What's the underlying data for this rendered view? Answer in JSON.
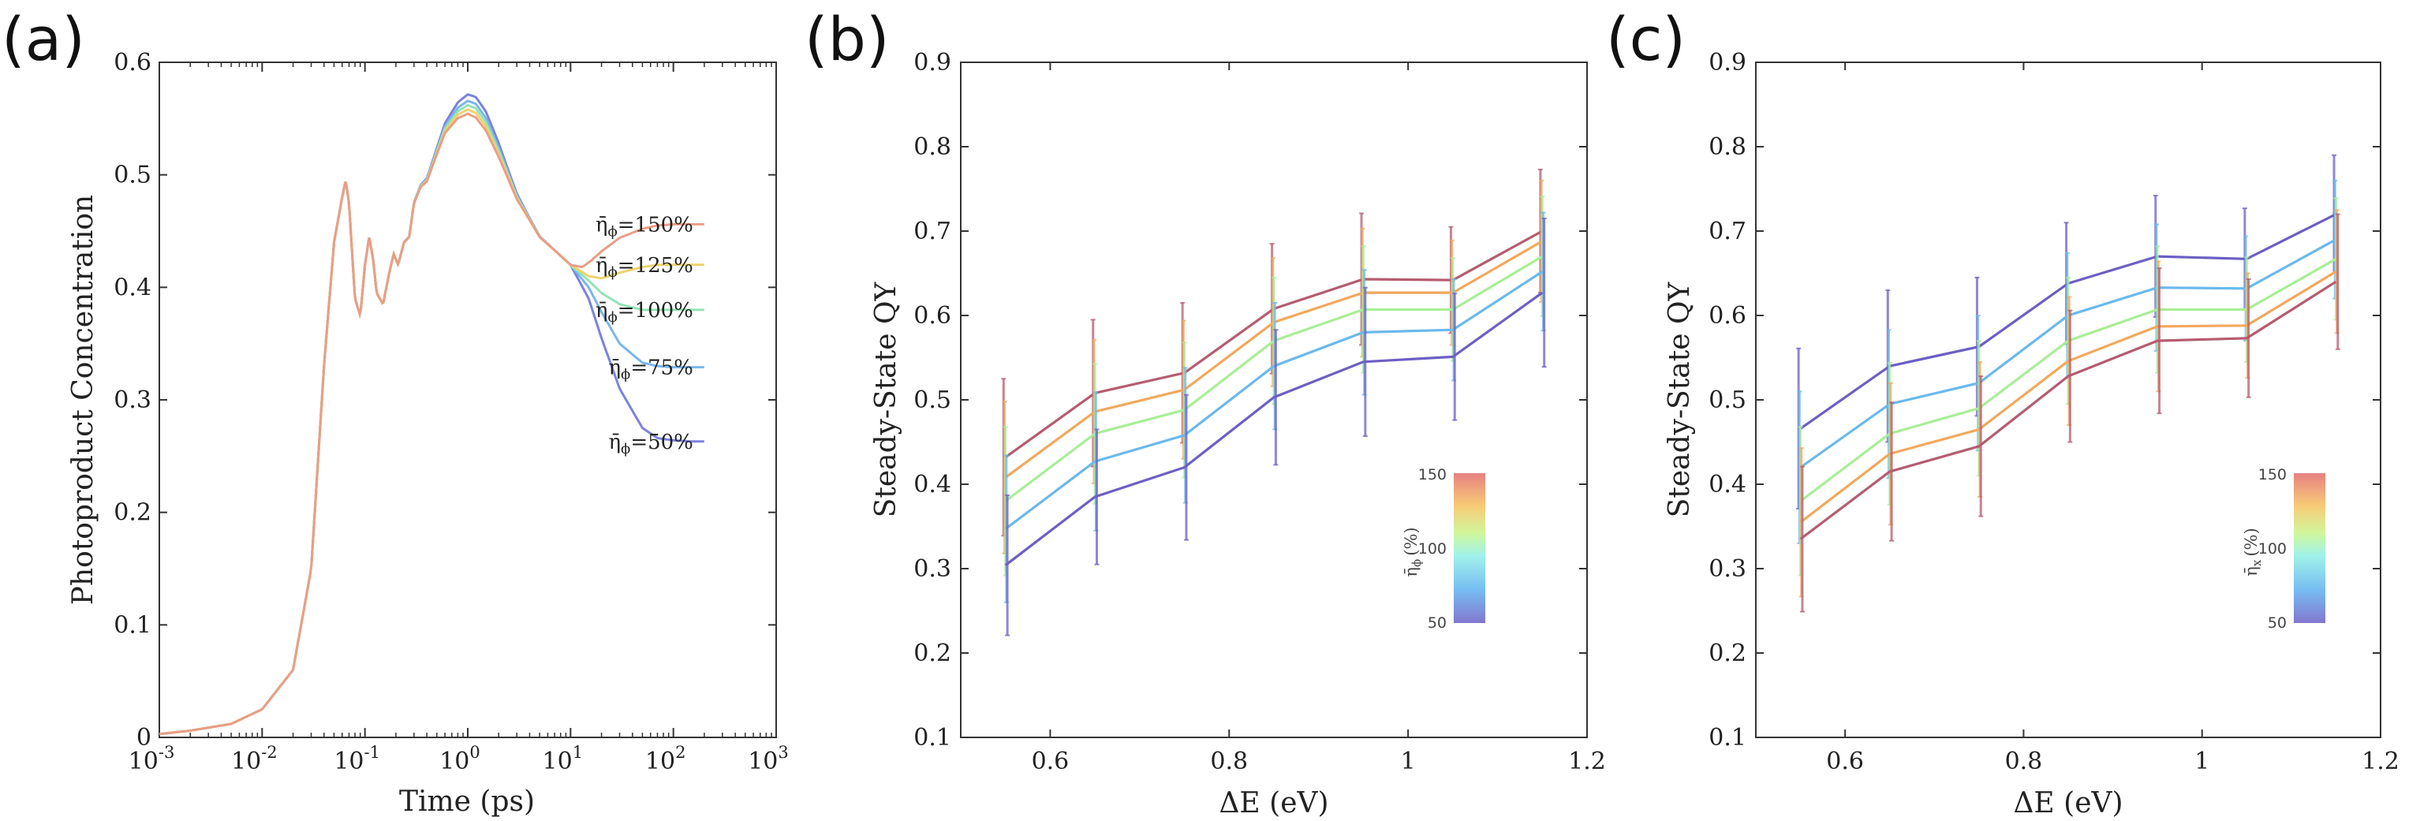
{
  "chart_data": [
    {
      "panel": "(a)",
      "type": "line",
      "title": "",
      "xlabel": "Time (ps)",
      "ylabel": "Photoproduct Concentration",
      "xscale": "log",
      "xlim": [
        0.001,
        1000
      ],
      "ylim": [
        0,
        0.6
      ],
      "xticks": [
        "10",
        "10",
        "10",
        "10",
        "10",
        "10",
        "10"
      ],
      "xtick_exponents": [
        "-3",
        "-2",
        "-1",
        "0",
        "1",
        "2",
        "3"
      ],
      "yticks": [
        "0",
        "0.1",
        "0.2",
        "0.3",
        "0.4",
        "0.5",
        "0.6"
      ],
      "base_curve": {
        "x": [
          0.001,
          0.002,
          0.005,
          0.01,
          0.02,
          0.03,
          0.04,
          0.05,
          0.06,
          0.065,
          0.07,
          0.08,
          0.09,
          0.1,
          0.11,
          0.12,
          0.13,
          0.15,
          0.17,
          0.19,
          0.21,
          0.24,
          0.27,
          0.3,
          0.35,
          0.4,
          0.5,
          0.6,
          0.8,
          1.0,
          1.2,
          1.5,
          2.0,
          3.0,
          5.0,
          10.0
        ],
        "y": [
          0.003,
          0.006,
          0.012,
          0.025,
          0.06,
          0.15,
          0.33,
          0.44,
          0.48,
          0.495,
          0.475,
          0.39,
          0.375,
          0.42,
          0.445,
          0.425,
          0.395,
          0.385,
          0.41,
          0.43,
          0.42,
          0.44,
          0.445,
          0.475,
          0.49,
          0.495,
          0.52,
          0.54,
          0.555,
          0.56,
          0.557,
          0.545,
          0.52,
          0.48,
          0.445,
          0.42
        ]
      },
      "series": [
        {
          "name": "η̄ϕ=50%",
          "label_subscript": "ϕ",
          "label_value": "=50%",
          "color": "#7b82dd",
          "peak_add": 0.012,
          "tail_x": [
            10,
            15,
            20,
            30,
            50,
            70,
            100,
            150,
            200
          ],
          "tail_y": [
            0.42,
            0.39,
            0.355,
            0.31,
            0.275,
            0.266,
            0.264,
            0.263,
            0.263
          ]
        },
        {
          "name": "η̄ϕ=75%",
          "label_subscript": "ϕ",
          "label_value": "=75%",
          "color": "#79b7ea",
          "peak_add": 0.006,
          "tail_x": [
            10,
            15,
            20,
            30,
            50,
            70,
            100,
            150,
            200
          ],
          "tail_y": [
            0.42,
            0.4,
            0.378,
            0.35,
            0.333,
            0.33,
            0.329,
            0.329,
            0.329
          ]
        },
        {
          "name": "η̄ϕ=100%",
          "label_subscript": "ϕ",
          "label_value": "=100%",
          "color": "#95e3b6",
          "peak_add": 0.002,
          "tail_x": [
            10,
            15,
            20,
            30,
            50,
            70,
            100,
            150,
            200
          ],
          "tail_y": [
            0.42,
            0.406,
            0.395,
            0.385,
            0.38,
            0.38,
            0.38,
            0.38,
            0.38
          ]
        },
        {
          "name": "η̄ϕ=125%",
          "label_subscript": "ϕ",
          "label_value": "=125%",
          "color": "#ecd36c",
          "peak_add": -0.002,
          "tail_x": [
            10,
            15,
            20,
            30,
            50,
            70,
            100,
            150,
            200
          ],
          "tail_y": [
            0.42,
            0.41,
            0.408,
            0.413,
            0.418,
            0.42,
            0.42,
            0.42,
            0.42
          ]
        },
        {
          "name": "η̄ϕ=150%",
          "label_subscript": "ϕ",
          "label_value": "=150%",
          "color": "#e99e86",
          "peak_add": -0.006,
          "tail_x": [
            10,
            13,
            16,
            20,
            30,
            50,
            70,
            100,
            150,
            200
          ],
          "tail_y": [
            0.42,
            0.418,
            0.424,
            0.432,
            0.444,
            0.452,
            0.455,
            0.456,
            0.456,
            0.456
          ]
        }
      ]
    },
    {
      "panel": "(b)",
      "type": "line",
      "title": "",
      "xlabel": "ΔE (eV)",
      "ylabel": "Steady-State QY",
      "xlim": [
        0.5,
        1.2
      ],
      "ylim": [
        0.1,
        0.9
      ],
      "xticks": [
        "0.6",
        "0.8",
        "1",
        "1.2"
      ],
      "yticks": [
        "0.1",
        "0.2",
        "0.3",
        "0.4",
        "0.5",
        "0.6",
        "0.7",
        "0.8",
        "0.9"
      ],
      "x": [
        0.55,
        0.65,
        0.75,
        0.85,
        0.95,
        1.05,
        1.15
      ],
      "colorbar": {
        "title": "η̄ϕ (%)",
        "title_subscript": "ϕ",
        "unit": "(%)",
        "min": "50",
        "mid": "100",
        "max": "150"
      },
      "series": [
        {
          "name": "150%",
          "color": "#b55c70",
          "y": [
            0.432,
            0.508,
            0.532,
            0.608,
            0.643,
            0.642,
            0.7
          ],
          "err": [
            0.093,
            0.087,
            0.083,
            0.077,
            0.078,
            0.063,
            0.073
          ]
        },
        {
          "name": "125%",
          "color": "#f2a85d",
          "y": [
            0.408,
            0.486,
            0.512,
            0.592,
            0.627,
            0.627,
            0.688
          ],
          "err": [
            0.09,
            0.085,
            0.082,
            0.076,
            0.076,
            0.062,
            0.072
          ]
        },
        {
          "name": "100%",
          "color": "#a8ee96",
          "y": [
            0.38,
            0.46,
            0.488,
            0.57,
            0.607,
            0.607,
            0.67
          ],
          "err": [
            0.088,
            0.083,
            0.08,
            0.075,
            0.075,
            0.061,
            0.071
          ]
        },
        {
          "name": "75%",
          "color": "#6ab9ec",
          "y": [
            0.347,
            0.427,
            0.458,
            0.54,
            0.58,
            0.583,
            0.652
          ],
          "err": [
            0.087,
            0.082,
            0.08,
            0.075,
            0.074,
            0.06,
            0.07
          ]
        },
        {
          "name": "50%",
          "color": "#6c5fc4",
          "y": [
            0.304,
            0.385,
            0.42,
            0.503,
            0.545,
            0.551,
            0.627
          ],
          "err": [
            0.083,
            0.08,
            0.086,
            0.08,
            0.088,
            0.075,
            0.088
          ]
        }
      ]
    },
    {
      "panel": "(c)",
      "type": "line",
      "title": "",
      "xlabel": "ΔE (eV)",
      "ylabel": "Steady-State QY",
      "xlim": [
        0.5,
        1.2
      ],
      "ylim": [
        0.1,
        0.9
      ],
      "xticks": [
        "0.6",
        "0.8",
        "1",
        "1.2"
      ],
      "yticks": [
        "0.1",
        "0.2",
        "0.3",
        "0.4",
        "0.5",
        "0.6",
        "0.7",
        "0.8",
        "0.9"
      ],
      "x": [
        0.55,
        0.65,
        0.75,
        0.85,
        0.95,
        1.05,
        1.15
      ],
      "colorbar": {
        "title": "η̄x (%)",
        "title_subscript": "x",
        "unit": "(%)",
        "min": "50",
        "mid": "100",
        "max": "150"
      },
      "series": [
        {
          "name": "50%",
          "color": "#6c5fc4",
          "y": [
            0.466,
            0.54,
            0.563,
            0.638,
            0.67,
            0.667,
            0.72
          ],
          "err": [
            0.095,
            0.09,
            0.082,
            0.072,
            0.072,
            0.06,
            0.07
          ]
        },
        {
          "name": "75%",
          "color": "#6ab9ec",
          "y": [
            0.42,
            0.495,
            0.52,
            0.6,
            0.633,
            0.632,
            0.69
          ],
          "err": [
            0.09,
            0.088,
            0.08,
            0.074,
            0.075,
            0.062,
            0.07
          ]
        },
        {
          "name": "100%",
          "color": "#a8ee96",
          "y": [
            0.38,
            0.46,
            0.49,
            0.57,
            0.607,
            0.607,
            0.667
          ],
          "err": [
            0.088,
            0.084,
            0.08,
            0.075,
            0.075,
            0.062,
            0.072
          ]
        },
        {
          "name": "125%",
          "color": "#f2a85d",
          "y": [
            0.355,
            0.436,
            0.465,
            0.546,
            0.587,
            0.588,
            0.652
          ],
          "err": [
            0.088,
            0.084,
            0.08,
            0.076,
            0.077,
            0.062,
            0.073
          ]
        },
        {
          "name": "150%",
          "color": "#b55c70",
          "y": [
            0.335,
            0.415,
            0.445,
            0.528,
            0.57,
            0.573,
            0.64
          ],
          "err": [
            0.086,
            0.082,
            0.083,
            0.078,
            0.086,
            0.07,
            0.08
          ]
        }
      ]
    }
  ]
}
